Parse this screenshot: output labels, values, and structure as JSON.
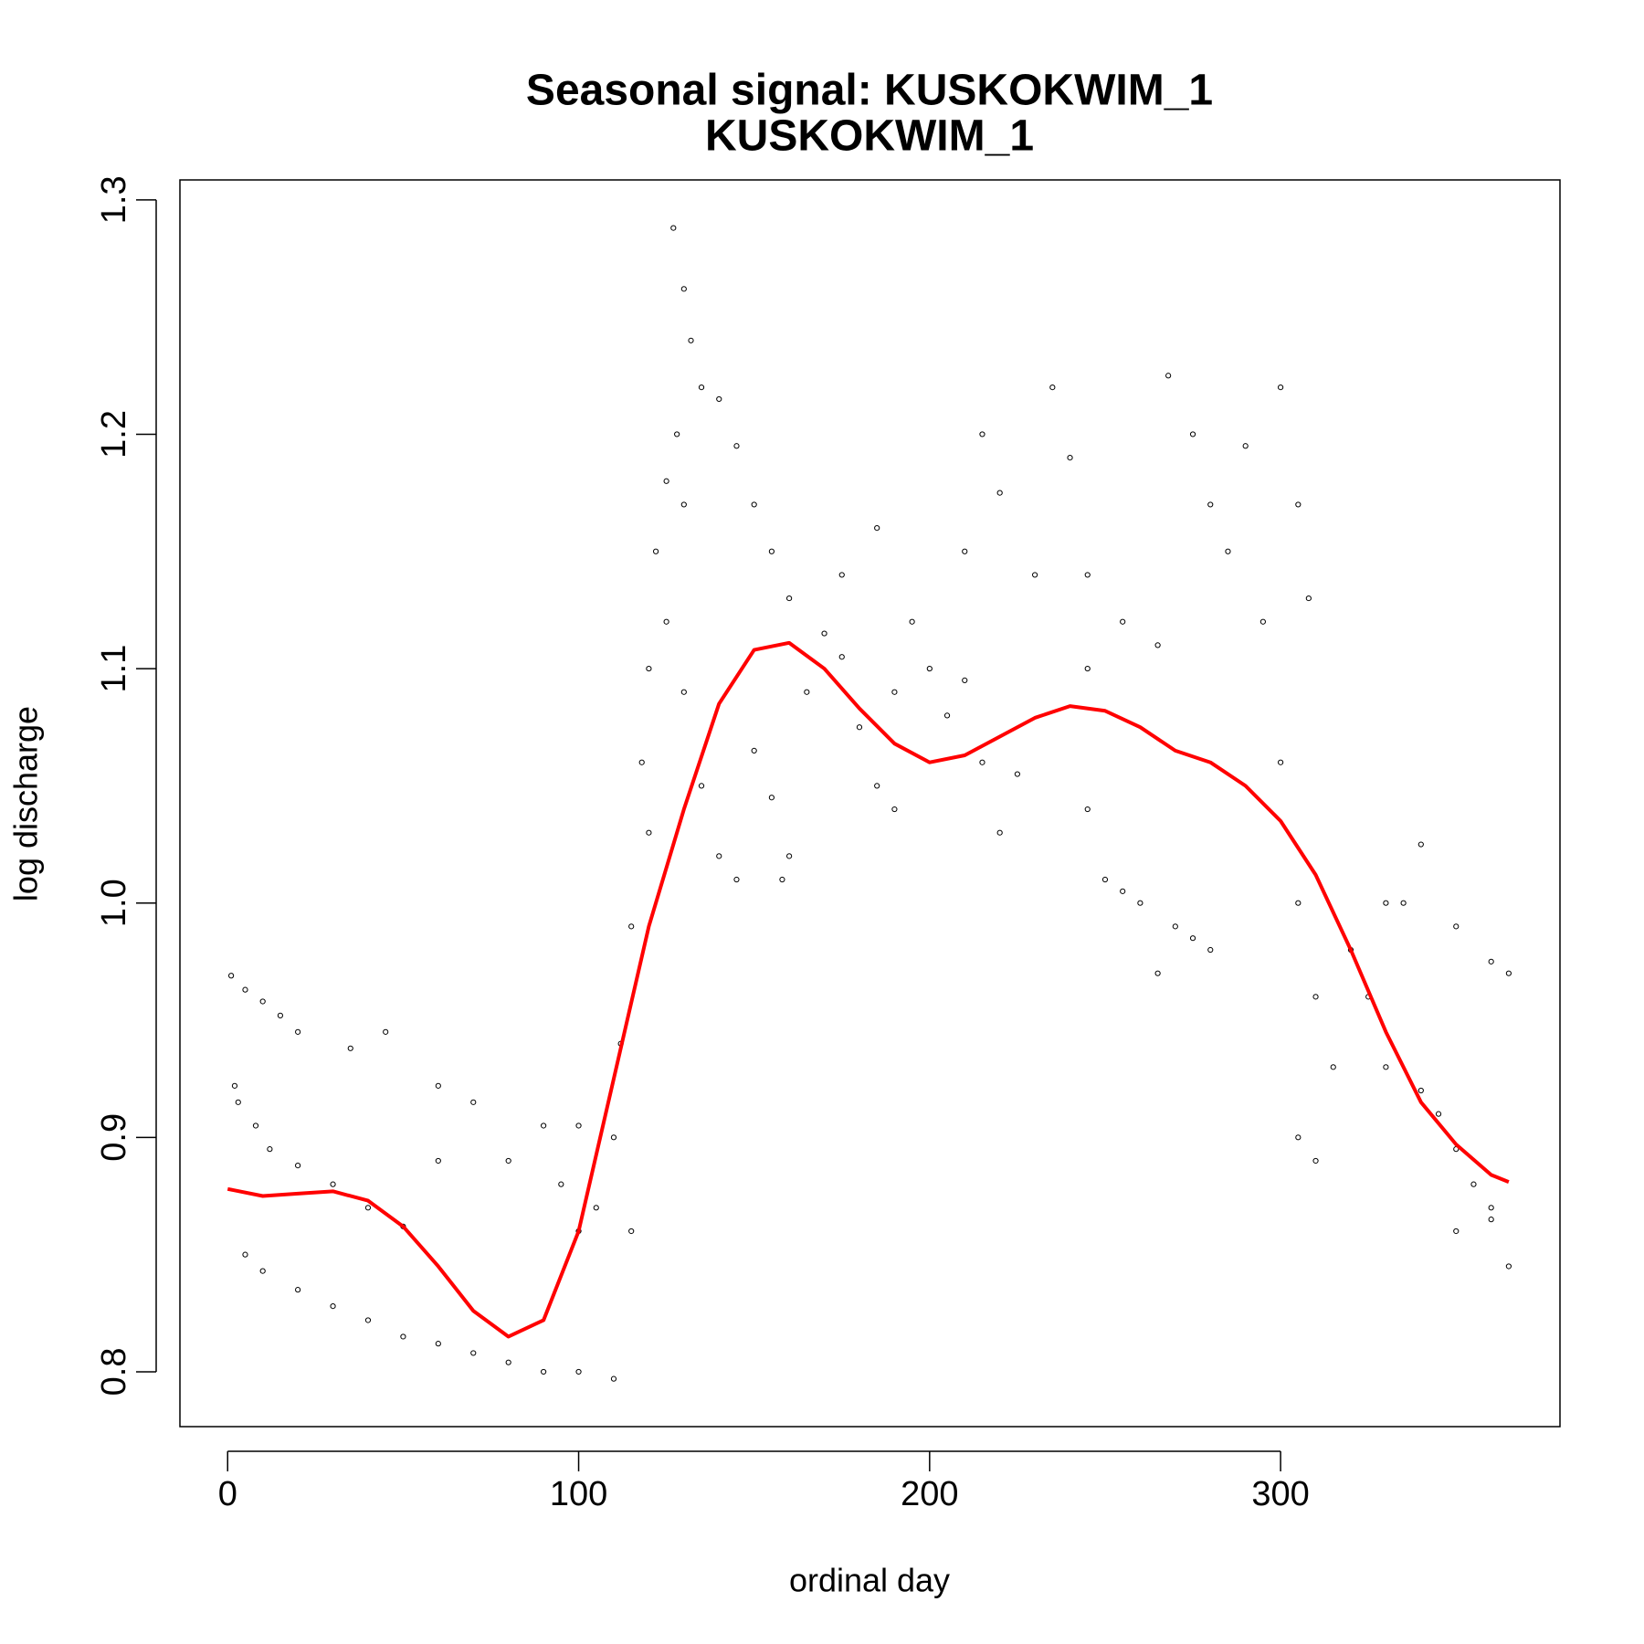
{
  "chart_data": {
    "type": "scatter",
    "title": "Seasonal signal: KUSKOKWIM_1",
    "subtitle": "KUSKOKWIM_1",
    "x_label": "ordinal day",
    "y_label": "log discharge",
    "xlim": [
      -13.6,
      379.6
    ],
    "ylim": [
      0.7766,
      1.3085
    ],
    "xticks": [
      0,
      100,
      200,
      300
    ],
    "yticks": [
      0.8,
      0.9,
      {
        "value": 1,
        "label": "1.0"
      },
      1.1,
      1.2,
      1.3
    ],
    "series": [
      {
        "type": "scatter",
        "color": "#000000",
        "x": [
          1,
          5,
          10,
          15,
          20,
          2,
          3,
          8,
          12,
          20,
          30,
          40,
          50,
          5,
          10,
          20,
          30,
          40,
          50,
          60,
          70,
          80,
          90,
          100,
          110,
          35,
          45,
          60,
          70,
          60,
          80,
          90,
          100,
          95,
          100,
          105,
          110,
          112,
          115,
          118,
          120,
          122,
          125,
          120,
          115,
          127,
          130,
          132,
          135,
          128,
          130,
          125,
          130,
          135,
          140,
          145,
          140,
          145,
          150,
          155,
          160,
          150,
          155,
          160,
          158,
          165,
          170,
          175,
          180,
          185,
          190,
          185,
          195,
          200,
          205,
          210,
          215,
          220,
          215,
          220,
          225,
          230,
          235,
          240,
          245,
          245,
          250,
          255,
          260,
          265,
          270,
          275,
          280,
          268,
          275,
          280,
          285,
          290,
          295,
          300,
          305,
          308,
          300,
          305,
          310,
          315,
          305,
          310,
          320,
          325,
          330,
          335,
          330,
          340,
          345,
          350,
          355,
          360,
          365,
          340,
          350,
          360,
          365,
          350,
          360,
          245,
          255,
          265,
          190,
          175,
          210
        ],
        "values": [
          0.969,
          0.963,
          0.958,
          0.952,
          0.945,
          0.922,
          0.915,
          0.905,
          0.895,
          0.888,
          0.88,
          0.87,
          0.862,
          0.85,
          0.843,
          0.835,
          0.828,
          0.822,
          0.815,
          0.812,
          0.808,
          0.804,
          0.8,
          0.8,
          0.797,
          0.938,
          0.945,
          0.922,
          0.915,
          0.89,
          0.89,
          0.905,
          0.905,
          0.88,
          0.86,
          0.87,
          0.9,
          0.94,
          0.99,
          1.06,
          1.1,
          1.15,
          1.18,
          1.03,
          0.86,
          1.288,
          1.262,
          1.24,
          1.22,
          1.2,
          1.17,
          1.12,
          1.09,
          1.05,
          1.02,
          1.01,
          1.215,
          1.195,
          1.17,
          1.15,
          1.13,
          1.065,
          1.045,
          1.02,
          1.01,
          1.09,
          1.115,
          1.14,
          1.075,
          1.05,
          1.04,
          1.16,
          1.12,
          1.1,
          1.08,
          1.15,
          1.2,
          1.175,
          1.06,
          1.03,
          1.055,
          1.14,
          1.22,
          1.19,
          1.1,
          1.04,
          1.01,
          1.005,
          1.0,
          0.97,
          0.99,
          0.985,
          0.98,
          1.225,
          1.2,
          1.17,
          1.15,
          1.195,
          1.12,
          1.22,
          1.17,
          1.13,
          1.06,
          1.0,
          0.96,
          0.93,
          0.9,
          0.89,
          0.98,
          0.96,
          1.0,
          1.0,
          0.93,
          0.92,
          0.91,
          0.895,
          0.88,
          0.87,
          0.845,
          1.025,
          0.99,
          0.975,
          0.97,
          0.86,
          0.865,
          1.14,
          1.12,
          1.11,
          1.09,
          1.105,
          1.095
        ]
      },
      {
        "type": "line",
        "color": "#ff0000",
        "x": [
          0,
          10,
          20,
          30,
          40,
          50,
          60,
          70,
          80,
          90,
          100,
          110,
          120,
          130,
          140,
          150,
          160,
          170,
          180,
          190,
          200,
          210,
          220,
          230,
          240,
          250,
          260,
          270,
          280,
          290,
          300,
          310,
          320,
          330,
          340,
          350,
          360,
          365
        ],
        "values": [
          0.878,
          0.875,
          0.876,
          0.877,
          0.873,
          0.862,
          0.845,
          0.826,
          0.815,
          0.822,
          0.86,
          0.925,
          0.99,
          1.04,
          1.085,
          1.108,
          1.111,
          1.1,
          1.083,
          1.068,
          1.06,
          1.063,
          1.071,
          1.079,
          1.084,
          1.082,
          1.075,
          1.065,
          1.06,
          1.05,
          1.035,
          1.012,
          0.98,
          0.945,
          0.915,
          0.897,
          0.884,
          0.881
        ]
      }
    ]
  }
}
